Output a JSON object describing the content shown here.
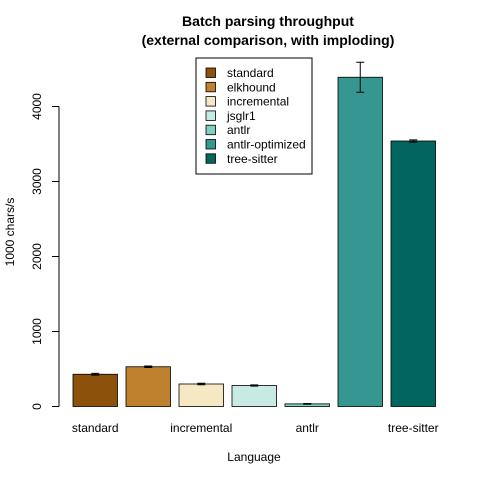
{
  "chart_data": {
    "type": "bar",
    "title_lines": [
      "Batch parsing throughput",
      "(external comparison, with imploding)"
    ],
    "xlabel": "Language",
    "ylabel": "1000 chars/s",
    "categories": [
      "standard",
      "elkhound",
      "incremental",
      "jsglr1",
      "antlr",
      "antlr-optimized",
      "tree-sitter"
    ],
    "x_tick_labels_shown": [
      "standard",
      "",
      "incremental",
      "",
      "antlr",
      "",
      "tree-sitter"
    ],
    "values": [
      430,
      530,
      300,
      280,
      35,
      4390,
      3540
    ],
    "errors": [
      12,
      10,
      10,
      8,
      5,
      200,
      15
    ],
    "colors": [
      "#8c510a",
      "#bf812d",
      "#f6e8c3",
      "#c7eae5",
      "#80cdc1",
      "#35978f",
      "#01665e"
    ],
    "ylim": [
      0,
      4600
    ],
    "yticks": [
      0,
      1000,
      2000,
      3000,
      4000
    ],
    "ytick_labels": [
      "0",
      "1000",
      "2000",
      "3000",
      "4000"
    ],
    "legend_position": "top-center",
    "grid": false
  }
}
